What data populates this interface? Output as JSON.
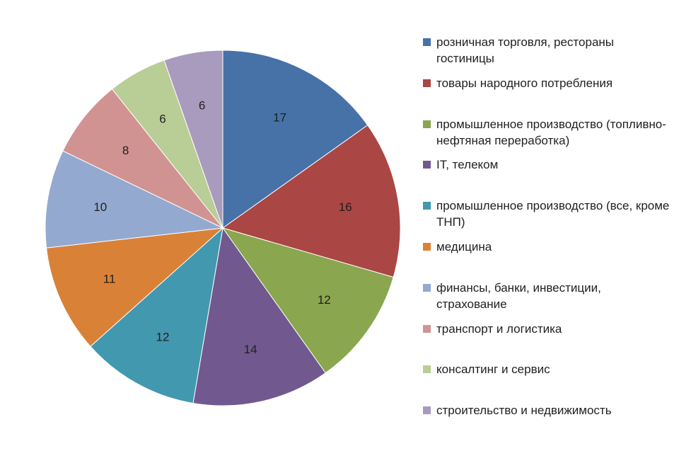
{
  "chart_data": {
    "type": "pie",
    "title": "",
    "legend_position": "right",
    "slices": [
      {
        "label": "розничная торговля, рестораны гостиницы",
        "value": 17,
        "color": "#4672A8"
      },
      {
        "label": "товары народного потребления",
        "value": 16,
        "color": "#AA4644"
      },
      {
        "label": "промышленное производство (топливно-нефтяная переработка)",
        "value": 12,
        "color": "#8AA64E"
      },
      {
        "label": "IT, телеком",
        "value": 14,
        "color": "#71598F"
      },
      {
        "label": "промышленное производство (все, кроме ТНП)",
        "value": 12,
        "color": "#4298AF"
      },
      {
        "label": "медицина",
        "value": 11,
        "color": "#DA8138"
      },
      {
        "label": "финансы, банки, инвестиции, страхование",
        "value": 10,
        "color": "#93A9D0"
      },
      {
        "label": "транспорт и логистика",
        "value": 8,
        "color": "#D19392"
      },
      {
        "label": "консалтинг и сервис",
        "value": 6,
        "color": "#B9CD96"
      },
      {
        "label": "строительство и недвижимость",
        "value": 6,
        "color": "#A99BBD"
      }
    ]
  }
}
